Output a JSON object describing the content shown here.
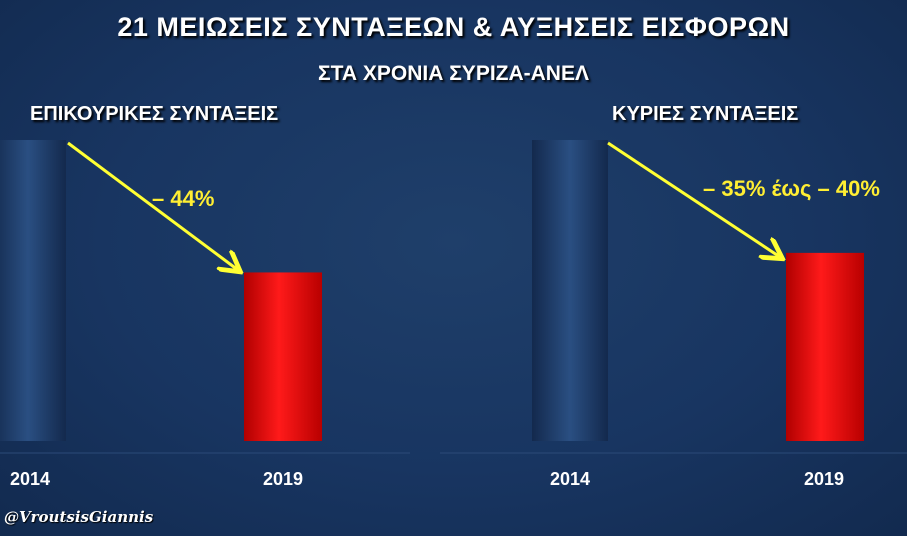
{
  "title": "21 ΜΕΙΩΣΕΙΣ ΣΥΝΤΑΞΕΩΝ & ΑΥΞΗΣΕΙΣ ΕΙΣΦΟΡΩΝ",
  "subtitle": "ΣΤΑ ΧΡΟΝΙΑ ΣΥΡΙΖΑ-ΑΝΕΛ",
  "handle": "@VroutsisGiannis",
  "colors": {
    "bar_2014": "#1c3a66",
    "bar_2019": "#e00000",
    "arrow": "#ffff33",
    "annotation": "#ffee33"
  },
  "chart_data": [
    {
      "type": "bar",
      "title": "ΕΠΙΚΟΥΡΙΚΕΣ ΣΥΝΤΑΞΕΙΣ",
      "categories": [
        "2014",
        "2019"
      ],
      "values": [
        100,
        56
      ],
      "annotation": "– 44%",
      "grid": false
    },
    {
      "type": "bar",
      "title": "ΚΥΡΙΕΣ ΣΥΝΤΑΞΕΙΣ",
      "categories": [
        "2014",
        "2019"
      ],
      "values": [
        100,
        62.5
      ],
      "annotation": "– 35% έως – 40%",
      "grid": false
    }
  ]
}
